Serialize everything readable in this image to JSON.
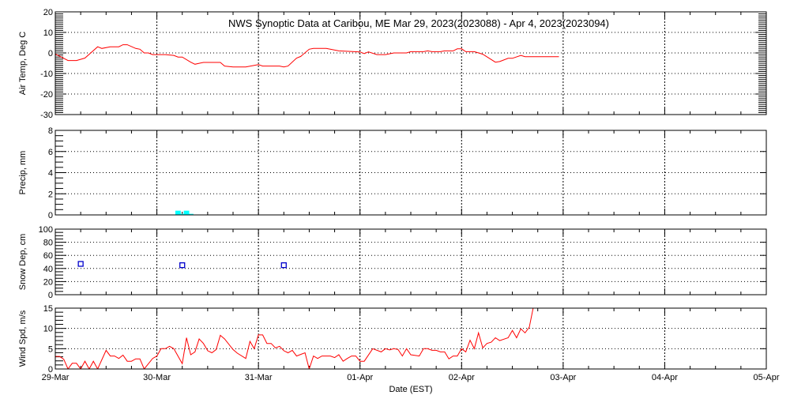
{
  "title": "NWS Synoptic Data at Caribou, ME   Mar 29, 2023(2023088) - Apr  4, 2023(2023094)",
  "xlabel": "Date (EST)",
  "x_ticks": [
    "29-Mar",
    "30-Mar",
    "31-Mar",
    "01-Apr",
    "02-Apr",
    "03-Apr",
    "04-Apr",
    "05-Apr"
  ],
  "x_range": [
    "2023-03-29 00:00",
    "2023-04-05 00:00"
  ],
  "chart_data": [
    {
      "type": "line",
      "ylabel": "Air Temp, Deg C",
      "ylim": [
        -30,
        20
      ],
      "y_ticks": [
        -30,
        -20,
        -10,
        0,
        10,
        20
      ],
      "grid": true,
      "color": "#ff0000",
      "points": [
        [
          "2023-03-29 00:00",
          -0.5
        ],
        [
          "2023-03-29 03:00",
          -3.7
        ],
        [
          "2023-03-29 05:00",
          -3.7
        ],
        [
          "2023-03-29 07:00",
          -2.5
        ],
        [
          "2023-03-29 10:00",
          3
        ],
        [
          "2023-03-29 11:00",
          2.2
        ],
        [
          "2023-03-29 13:00",
          3
        ],
        [
          "2023-03-29 15:00",
          3
        ],
        [
          "2023-03-29 16:00",
          4
        ],
        [
          "2023-03-29 17:00",
          4
        ],
        [
          "2023-03-29 19:00",
          2.2
        ],
        [
          "2023-03-29 20:00",
          1.8
        ],
        [
          "2023-03-29 21:00",
          0
        ],
        [
          "2023-03-29 22:00",
          0
        ],
        [
          "2023-03-29 23:00",
          -0.8
        ],
        [
          "2023-03-30 02:00",
          -0.8
        ],
        [
          "2023-03-30 04:00",
          -1.2
        ],
        [
          "2023-03-30 05:00",
          -2
        ],
        [
          "2023-03-30 06:00",
          -2
        ],
        [
          "2023-03-30 08:00",
          -4.5
        ],
        [
          "2023-03-30 09:00",
          -5.5
        ],
        [
          "2023-03-30 11:00",
          -4.6
        ],
        [
          "2023-03-30 15:00",
          -4.6
        ],
        [
          "2023-03-30 16:00",
          -6.4
        ],
        [
          "2023-03-30 18:00",
          -6.8
        ],
        [
          "2023-03-30 21:00",
          -6.8
        ],
        [
          "2023-03-31 00:00",
          -5.7
        ],
        [
          "2023-03-31 01:00",
          -6.4
        ],
        [
          "2023-03-31 05:00",
          -6.4
        ],
        [
          "2023-03-31 06:00",
          -6.8
        ],
        [
          "2023-03-31 07:00",
          -6.4
        ],
        [
          "2023-03-31 09:00",
          -2.5
        ],
        [
          "2023-03-31 10:00",
          -1.7
        ],
        [
          "2023-03-31 12:00",
          1.8
        ],
        [
          "2023-03-31 13:00",
          2.2
        ],
        [
          "2023-03-31 16:00",
          2.2
        ],
        [
          "2023-03-31 19:00",
          1
        ],
        [
          "2023-04-01 00:00",
          0.5
        ],
        [
          "2023-04-01 01:00",
          -0.3
        ],
        [
          "2023-04-01 02:00",
          0.5
        ],
        [
          "2023-04-01 04:00",
          -0.8
        ],
        [
          "2023-04-01 06:00",
          -0.8
        ],
        [
          "2023-04-01 08:00",
          0
        ],
        [
          "2023-04-01 11:00",
          0
        ],
        [
          "2023-04-01 12:00",
          0.6
        ],
        [
          "2023-04-01 15:00",
          0.6
        ],
        [
          "2023-04-01 16:00",
          1
        ],
        [
          "2023-04-01 17:00",
          0.6
        ],
        [
          "2023-04-01 19:00",
          0.6
        ],
        [
          "2023-04-01 20:00",
          1
        ],
        [
          "2023-04-01 22:00",
          1
        ],
        [
          "2023-04-01 23:00",
          2
        ],
        [
          "2023-04-02 00:00",
          2
        ],
        [
          "2023-04-02 01:00",
          0.6
        ],
        [
          "2023-04-02 03:00",
          0.6
        ],
        [
          "2023-04-02 05:00",
          -0.6
        ],
        [
          "2023-04-02 08:00",
          -4.5
        ],
        [
          "2023-04-02 09:00",
          -4.2
        ],
        [
          "2023-04-02 11:00",
          -2.6
        ],
        [
          "2023-04-02 12:00",
          -2.6
        ],
        [
          "2023-04-02 14:00",
          -1.2
        ],
        [
          "2023-04-02 15:00",
          -1.8
        ],
        [
          "2023-04-02 23:00",
          -1.8
        ]
      ]
    },
    {
      "type": "bar",
      "ylabel": "Precip, mm",
      "ylim": [
        0,
        8
      ],
      "y_ticks": [
        0,
        2,
        4,
        6,
        8
      ],
      "grid": true,
      "color": "#00ffff",
      "points": [
        [
          "2023-03-30 05:00",
          0.4
        ],
        [
          "2023-03-30 06:00",
          0.1
        ],
        [
          "2023-03-30 07:00",
          0.4
        ],
        [
          "2023-03-30 08:00",
          0.1
        ]
      ]
    },
    {
      "type": "scatter",
      "ylabel": "Snow Dep, cm",
      "ylim": [
        0,
        100
      ],
      "y_ticks": [
        0,
        20,
        40,
        60,
        80,
        100
      ],
      "grid": true,
      "color": "#0000cc",
      "points": [
        [
          "2023-03-29 06:00",
          47
        ],
        [
          "2023-03-30 06:00",
          45
        ],
        [
          "2023-03-31 06:00",
          45
        ]
      ]
    },
    {
      "type": "line",
      "ylabel": "Wind Spd, m/s",
      "ylim": [
        0,
        15
      ],
      "y_ticks": [
        0,
        5,
        10,
        15
      ],
      "grid": true,
      "color": "#ff0000",
      "points": [
        [
          "2023-03-29 00:00",
          3.1
        ],
        [
          "2023-03-29 01:00",
          3.1
        ],
        [
          "2023-03-29 02:00",
          2.4
        ],
        [
          "2023-03-29 03:00",
          0
        ],
        [
          "2023-03-29 04:00",
          1.4
        ],
        [
          "2023-03-29 05:00",
          1.4
        ],
        [
          "2023-03-29 06:00",
          0
        ],
        [
          "2023-03-29 07:00",
          1.9
        ],
        [
          "2023-03-29 08:00",
          0
        ],
        [
          "2023-03-29 09:00",
          1.9
        ],
        [
          "2023-03-29 10:00",
          0
        ],
        [
          "2023-03-29 12:00",
          4.6
        ],
        [
          "2023-03-29 13:00",
          3.2
        ],
        [
          "2023-03-29 14:00",
          3.2
        ],
        [
          "2023-03-29 15:00",
          2.6
        ],
        [
          "2023-03-29 16:00",
          3.4
        ],
        [
          "2023-03-29 17:00",
          1.9
        ],
        [
          "2023-03-29 18:00",
          1.9
        ],
        [
          "2023-03-29 19:00",
          2.5
        ],
        [
          "2023-03-29 20:00",
          2.5
        ],
        [
          "2023-03-29 21:00",
          0
        ],
        [
          "2023-03-29 22:00",
          1.3
        ],
        [
          "2023-03-29 23:00",
          2.6
        ],
        [
          "2023-03-30 00:00",
          3.2
        ],
        [
          "2023-03-30 01:00",
          5
        ],
        [
          "2023-03-30 02:00",
          5
        ],
        [
          "2023-03-30 03:00",
          5.6
        ],
        [
          "2023-03-30 04:00",
          5
        ],
        [
          "2023-03-30 06:00",
          1.3
        ],
        [
          "2023-03-30 07:00",
          7.7
        ],
        [
          "2023-03-30 08:00",
          3.5
        ],
        [
          "2023-03-30 09:00",
          4.2
        ],
        [
          "2023-03-30 10:00",
          7.4
        ],
        [
          "2023-03-30 11:00",
          6.3
        ],
        [
          "2023-03-30 12:00",
          4.5
        ],
        [
          "2023-03-30 13:00",
          4
        ],
        [
          "2023-03-30 14:00",
          4.8
        ],
        [
          "2023-03-30 15:00",
          8.3
        ],
        [
          "2023-03-30 16:00",
          7.4
        ],
        [
          "2023-03-30 18:00",
          4.8
        ],
        [
          "2023-03-30 19:00",
          3.9
        ],
        [
          "2023-03-30 21:00",
          2.6
        ],
        [
          "2023-03-30 22:00",
          6.8
        ],
        [
          "2023-03-30 23:00",
          5
        ],
        [
          "2023-03-31 00:00",
          8.4
        ],
        [
          "2023-03-31 01:00",
          8.4
        ],
        [
          "2023-03-31 02:00",
          6.3
        ],
        [
          "2023-03-31 03:00",
          6.3
        ],
        [
          "2023-03-31 04:00",
          5.2
        ],
        [
          "2023-03-31 05:00",
          5.6
        ],
        [
          "2023-03-31 06:00",
          4.5
        ],
        [
          "2023-03-31 07:00",
          4
        ],
        [
          "2023-03-31 08:00",
          4.6
        ],
        [
          "2023-03-31 09:00",
          3.2
        ],
        [
          "2023-03-31 11:00",
          4
        ],
        [
          "2023-03-31 12:00",
          0
        ],
        [
          "2023-03-31 13:00",
          3.2
        ],
        [
          "2023-03-31 14:00",
          2.6
        ],
        [
          "2023-03-31 15:00",
          3.2
        ],
        [
          "2023-03-31 17:00",
          3.2
        ],
        [
          "2023-03-31 18:00",
          2.8
        ],
        [
          "2023-03-31 19:00",
          3.5
        ],
        [
          "2023-03-31 20:00",
          1.9
        ],
        [
          "2023-03-31 21:00",
          2.6
        ],
        [
          "2023-03-31 22:00",
          3.2
        ],
        [
          "2023-03-31 23:00",
          3.2
        ],
        [
          "2023-04-01 00:00",
          1.9
        ],
        [
          "2023-04-01 01:00",
          1.9
        ],
        [
          "2023-04-01 03:00",
          5
        ],
        [
          "2023-04-01 05:00",
          4.2
        ],
        [
          "2023-04-01 06:00",
          5
        ],
        [
          "2023-04-01 07:00",
          4.7
        ],
        [
          "2023-04-01 08:00",
          5
        ],
        [
          "2023-04-01 09:00",
          4.8
        ],
        [
          "2023-04-01 10:00",
          3.2
        ],
        [
          "2023-04-01 11:00",
          5
        ],
        [
          "2023-04-01 12:00",
          3.5
        ],
        [
          "2023-04-01 14:00",
          3.2
        ],
        [
          "2023-04-01 15:00",
          5
        ],
        [
          "2023-04-01 16:00",
          5
        ],
        [
          "2023-04-01 17:00",
          4.6
        ],
        [
          "2023-04-01 18:00",
          4.6
        ],
        [
          "2023-04-01 19:00",
          4.2
        ],
        [
          "2023-04-01 20:00",
          4.2
        ],
        [
          "2023-04-01 21:00",
          2.5
        ],
        [
          "2023-04-01 22:00",
          3.2
        ],
        [
          "2023-04-01 23:00",
          3.2
        ],
        [
          "2023-04-02 00:00",
          5
        ],
        [
          "2023-04-02 01:00",
          4.2
        ],
        [
          "2023-04-02 02:00",
          7.1
        ],
        [
          "2023-04-02 03:00",
          5
        ],
        [
          "2023-04-02 04:00",
          8.9
        ],
        [
          "2023-04-02 05:00",
          5.2
        ],
        [
          "2023-04-02 06:00",
          6.3
        ],
        [
          "2023-04-02 07:00",
          6.6
        ],
        [
          "2023-04-02 08:00",
          7.7
        ],
        [
          "2023-04-02 09:00",
          7
        ],
        [
          "2023-04-02 11:00",
          7.7
        ],
        [
          "2023-04-02 12:00",
          9.5
        ],
        [
          "2023-04-02 13:00",
          7.7
        ],
        [
          "2023-04-02 14:00",
          9.9
        ],
        [
          "2023-04-02 15:00",
          8.9
        ],
        [
          "2023-04-02 16:00",
          10.3
        ],
        [
          "2023-04-02 17:00",
          15.5
        ]
      ]
    }
  ]
}
